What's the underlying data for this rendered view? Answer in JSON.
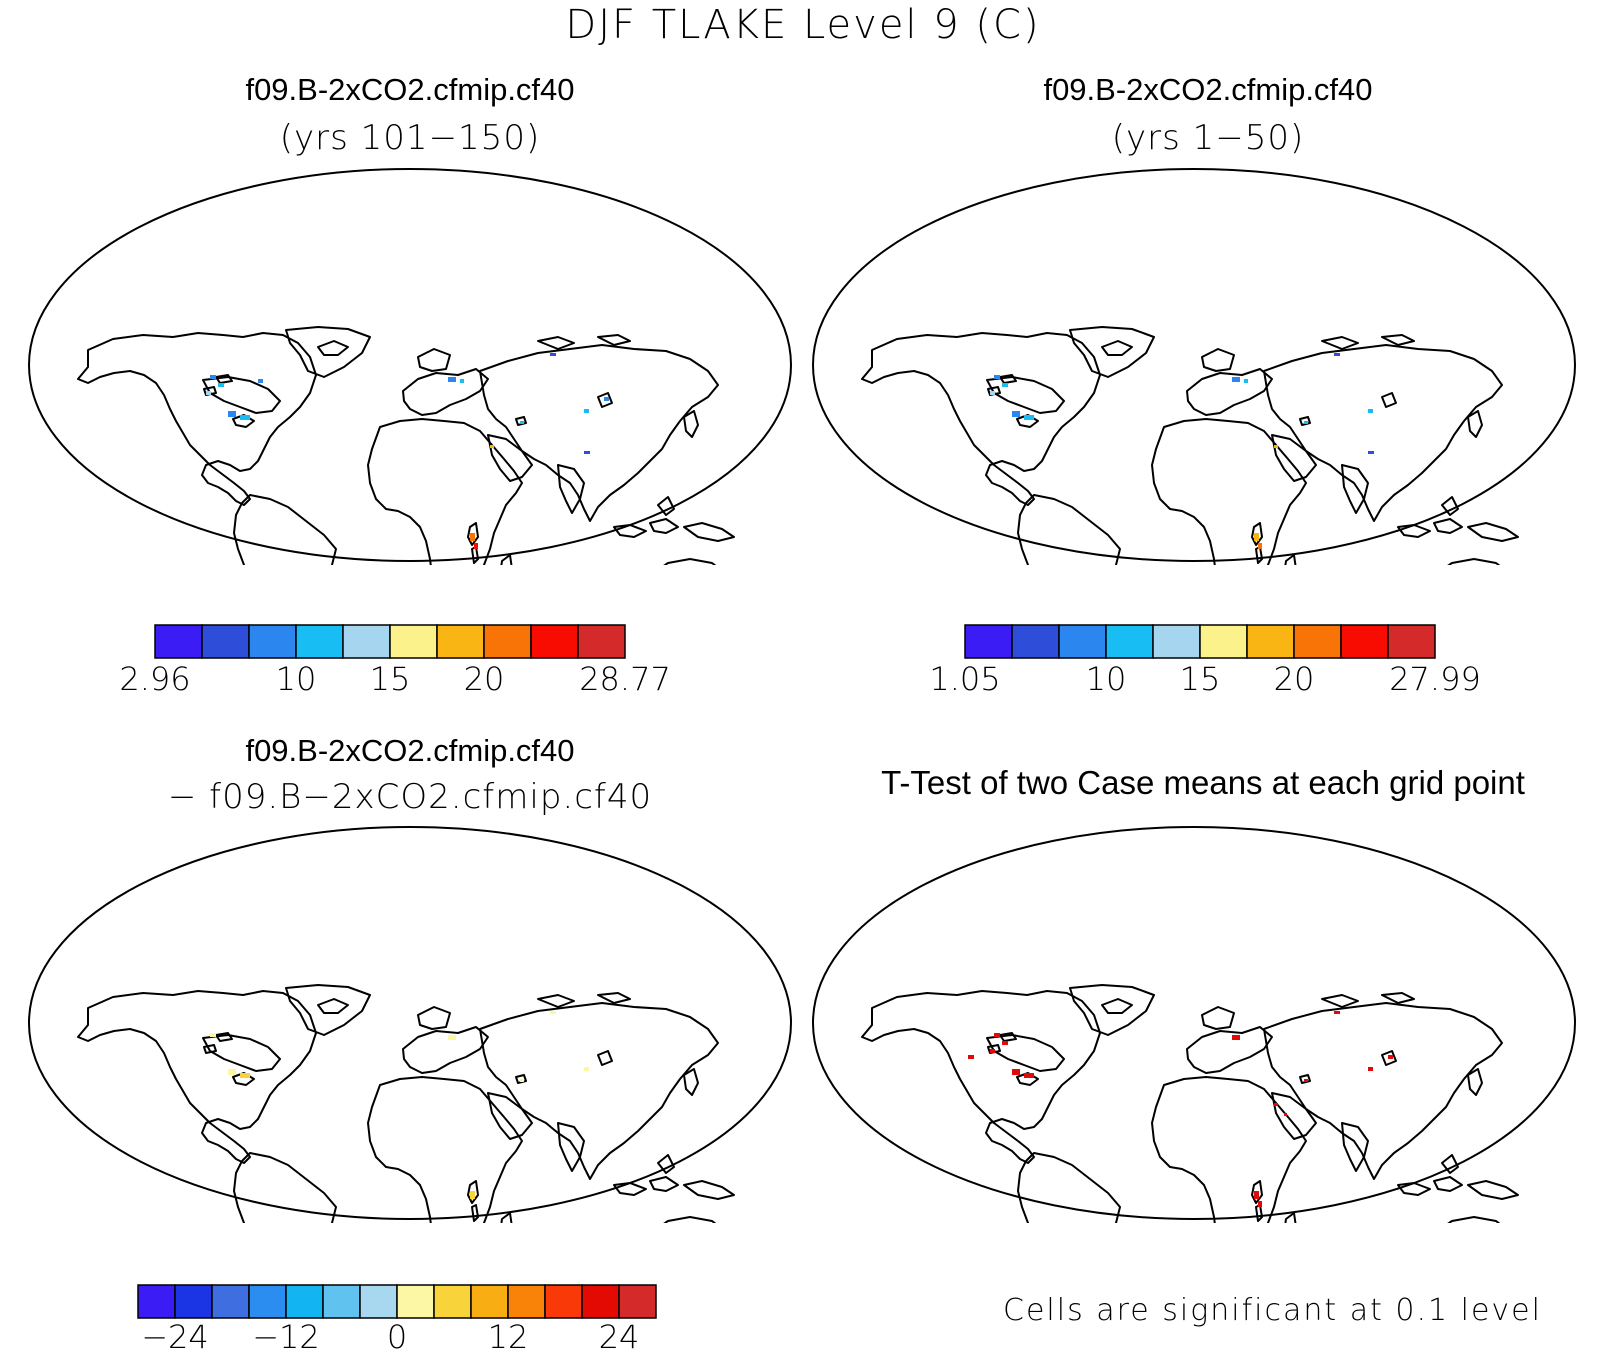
{
  "main_title": "DJF TLAKE Level 9 (C)",
  "panels": [
    {
      "title": "f09.B-2xCO2.cfmip.cf40",
      "subtitle": "(yrs 101−150)"
    },
    {
      "title": "f09.B-2xCO2.cfmip.cf40",
      "subtitle": "(yrs 1−50)"
    },
    {
      "title": "f09.B-2xCO2.cfmip.cf40",
      "subtitle": "− f09.B−2xCO2.cfmip.cf40"
    },
    {
      "title": "T-Test of two Case means at each grid point",
      "subtitle": ""
    }
  ],
  "colorbars": [
    {
      "colors": [
        "#3b1cf5",
        "#2e4ed9",
        "#2b86f0",
        "#17bdf3",
        "#a6d5f0",
        "#fbf28c",
        "#f8b514",
        "#f97406",
        "#f80c02",
        "#d42a2a"
      ],
      "labels": [
        "2.96",
        "10",
        "15",
        "20",
        "28.77"
      ]
    },
    {
      "colors": [
        "#3b1cf5",
        "#2e4ed9",
        "#2b86f0",
        "#17bdf3",
        "#a6d5f0",
        "#fbf28c",
        "#f8b514",
        "#f97406",
        "#f80c02",
        "#d42a2a"
      ],
      "labels": [
        "1.05",
        "10",
        "15",
        "20",
        "27.99"
      ]
    },
    {
      "colors": [
        "#3b1cf5",
        "#1b34e4",
        "#3e6ee0",
        "#2b8df0",
        "#12b4f2",
        "#60c3ef",
        "#a8d7f0",
        "#fbf7a4",
        "#f9d33a",
        "#f8ad12",
        "#f98209",
        "#f93a08",
        "#e20a03",
        "#d42a2a"
      ],
      "labels": [
        "−24",
        "−12",
        "0",
        "12",
        "24"
      ]
    }
  ],
  "significance_note": "Cells are significant at 0.1 level",
  "map_legend": {
    "value_range_case1": [
      2.96,
      28.77
    ],
    "value_range_case2": [
      1.05,
      27.99
    ]
  }
}
